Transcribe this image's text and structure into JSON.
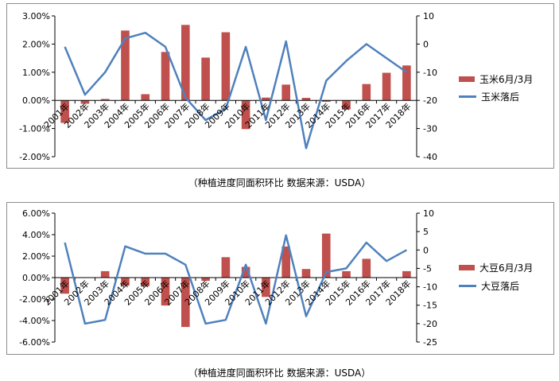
{
  "colors": {
    "bar": "#c0504d",
    "line": "#4f81bd",
    "axis": "#000000",
    "border": "#8c8c8c"
  },
  "chart_data": [
    {
      "type": "bar+line",
      "categories": [
        "2001年",
        "2002年",
        "2003年",
        "2004年",
        "2005年",
        "2006年",
        "2007年",
        "2008年",
        "2009年",
        "2010年",
        "2011年",
        "2012年",
        "2013年",
        "2014年",
        "2015年",
        "2016年",
        "2017年",
        "2018年"
      ],
      "series": [
        {
          "name": "玉米6月/3月",
          "type": "bar",
          "axis": "left",
          "values": [
            -0.8,
            -0.12,
            0.05,
            2.48,
            0.22,
            1.72,
            2.68,
            1.52,
            2.42,
            -1.02,
            0.1,
            0.56,
            0.09,
            -0.05,
            -0.32,
            0.58,
            0.98,
            1.24
          ]
        },
        {
          "name": "玉米落后",
          "type": "line",
          "axis": "right",
          "values": [
            -1,
            -18,
            -10,
            2,
            4,
            -1,
            -19,
            -27,
            -23,
            -1,
            -27,
            1,
            -37,
            -13,
            -6,
            0,
            -5,
            -10
          ]
        }
      ],
      "left_ticks": [
        "3.00%",
        "2.00%",
        "1.00%",
        "0.00%",
        "-1.00%",
        "-2.00%"
      ],
      "ylim_left": [
        -2,
        3
      ],
      "right_ticks": [
        "10",
        "0",
        "-10",
        "-20",
        "-30",
        "-40"
      ],
      "ylim_right": [
        -40,
        10
      ],
      "legend_position": "right",
      "caption": "（种植进度同面积环比     数据来源：USDA）"
    },
    {
      "type": "bar+line",
      "categories": [
        "2001年",
        "2002年",
        "2003年",
        "2004年",
        "2005年",
        "2006年",
        "2007年",
        "2008年",
        "2009年",
        "2010年",
        "2011年",
        "2012年",
        "2013年",
        "2014年",
        "2015年",
        "2016年",
        "2017年",
        "2018年"
      ],
      "series": [
        {
          "name": "大豆6月/3月",
          "type": "bar",
          "axis": "left",
          "values": [
            -1.5,
            0.0,
            0.6,
            -0.75,
            -0.8,
            -2.6,
            -4.6,
            -0.3,
            1.9,
            1.0,
            -1.8,
            2.9,
            0.8,
            4.1,
            0.6,
            1.75,
            0.0,
            0.6
          ]
        },
        {
          "name": "大豆落后",
          "type": "line",
          "axis": "right",
          "values": [
            2,
            -20,
            -19,
            1,
            -1,
            -1,
            -4,
            -20,
            -19,
            -4,
            -20,
            4,
            -18,
            -6,
            -5,
            2,
            -3,
            0
          ]
        }
      ],
      "left_ticks": [
        "6.00%",
        "4.00%",
        "2.00%",
        "0.00%",
        "-2.00%",
        "-4.00%",
        "-6.00%"
      ],
      "ylim_left": [
        -6,
        6
      ],
      "right_ticks": [
        "10",
        "5",
        "0",
        "-5",
        "-10",
        "-15",
        "-20",
        "-25"
      ],
      "ylim_right": [
        -25,
        10
      ],
      "legend_position": "right",
      "caption": "（种植进度同面积环比     数据来源：USDA）"
    }
  ]
}
